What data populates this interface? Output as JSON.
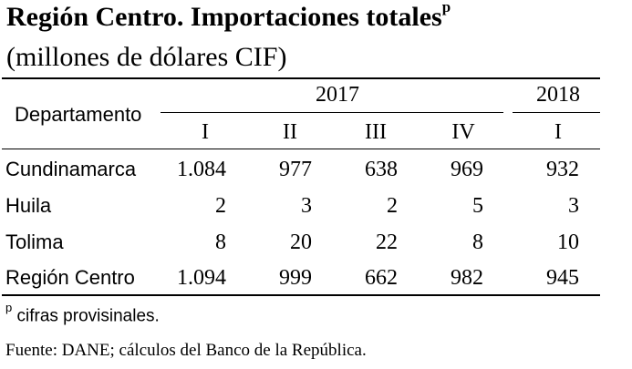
{
  "title": {
    "text": "Región Centro. Importaciones totales",
    "superscript": "p"
  },
  "subtitle": "(millones de dólares CIF)",
  "table": {
    "row_header": "Departamento",
    "years": [
      "2017",
      "2018"
    ],
    "quarters": [
      "I",
      "II",
      "III",
      "IV",
      "I"
    ],
    "rows": [
      {
        "label": "Cundinamarca",
        "values": [
          "1.084",
          "977",
          "638",
          "969",
          "932"
        ]
      },
      {
        "label": "Huila",
        "values": [
          "2",
          "3",
          "2",
          "5",
          "3"
        ]
      },
      {
        "label": "Tolima",
        "values": [
          "8",
          "20",
          "22",
          "8",
          "10"
        ]
      },
      {
        "label": "Región Centro",
        "values": [
          "1.094",
          "999",
          "662",
          "982",
          "945"
        ]
      }
    ]
  },
  "footnote": {
    "marker": "p",
    "text": " cifras provisinales."
  },
  "source": "Fuente: DANE; cálculos del Banco de la República."
}
